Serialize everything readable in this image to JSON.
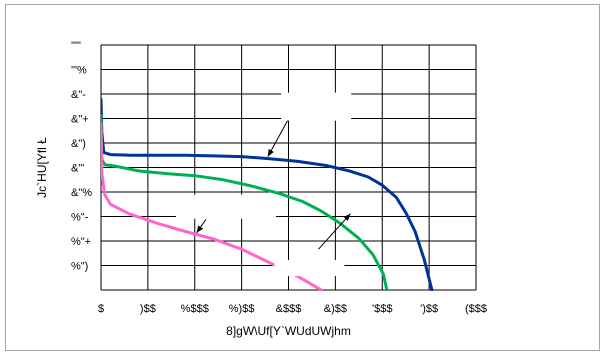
{
  "chart_data": {
    "type": "line",
    "title": "",
    "xlabel": "8]gW\\Uf[Y`WUdUWjhm",
    "ylabel": "Jc`HU[Yfl Ł",
    "x_tick_labels": [
      "$",
      ")$$",
      "%$$$",
      "%)$$",
      "&$$$",
      "&)$$",
      "'$$$",
      "')$$",
      "($$$"
    ],
    "y_tick_labels": [
      "'\"\"",
      "'\"%",
      "&\"-",
      "&\"+",
      "&\")",
      "&\"'",
      "&\"%",
      "%\"-",
      "%\"+",
      "%\")"
    ],
    "xlim": [
      0,
      4000
    ],
    "ylim": [
      1.5,
      3.3
    ],
    "grid": true,
    "legend": "none",
    "series": [
      {
        "color": "#003399",
        "points": [
          [
            0,
            2.9
          ],
          [
            8,
            2.66
          ],
          [
            30,
            2.51
          ],
          [
            100,
            2.495
          ],
          [
            300,
            2.49
          ],
          [
            600,
            2.49
          ],
          [
            900,
            2.49
          ],
          [
            1200,
            2.485
          ],
          [
            1500,
            2.48
          ],
          [
            1800,
            2.465
          ],
          [
            2100,
            2.445
          ],
          [
            2400,
            2.415
          ],
          [
            2650,
            2.375
          ],
          [
            2850,
            2.33
          ],
          [
            3000,
            2.27
          ],
          [
            3150,
            2.18
          ],
          [
            3250,
            2.07
          ],
          [
            3350,
            1.93
          ],
          [
            3450,
            1.72
          ],
          [
            3530,
            1.5
          ]
        ]
      },
      {
        "color": "#00b050",
        "points": [
          [
            0,
            2.78
          ],
          [
            8,
            2.46
          ],
          [
            40,
            2.42
          ],
          [
            150,
            2.41
          ],
          [
            400,
            2.375
          ],
          [
            700,
            2.355
          ],
          [
            1000,
            2.34
          ],
          [
            1300,
            2.31
          ],
          [
            1600,
            2.265
          ],
          [
            1900,
            2.21
          ],
          [
            2150,
            2.15
          ],
          [
            2350,
            2.08
          ],
          [
            2550,
            1.99
          ],
          [
            2750,
            1.88
          ],
          [
            2900,
            1.76
          ],
          [
            3010,
            1.62
          ],
          [
            3050,
            1.5
          ]
        ]
      },
      {
        "color": "#ff66cc",
        "points": [
          [
            0,
            2.72
          ],
          [
            10,
            2.35
          ],
          [
            40,
            2.2
          ],
          [
            100,
            2.13
          ],
          [
            300,
            2.06
          ],
          [
            600,
            1.99
          ],
          [
            900,
            1.93
          ],
          [
            1200,
            1.875
          ],
          [
            1500,
            1.8
          ],
          [
            1800,
            1.7
          ],
          [
            2100,
            1.6
          ],
          [
            2350,
            1.5
          ]
        ]
      }
    ],
    "annotations": [
      {
        "label": "",
        "color": "#000000",
        "from": [
          2050,
          2.82
        ],
        "to": [
          1780,
          2.48
        ]
      },
      {
        "label": "",
        "color": "#000000",
        "from": [
          1120,
          2.02
        ],
        "to": [
          1020,
          1.92
        ]
      },
      {
        "label": "",
        "color": "#000000",
        "from": [
          2320,
          1.8
        ],
        "to": [
          2660,
          2.06
        ]
      }
    ]
  }
}
